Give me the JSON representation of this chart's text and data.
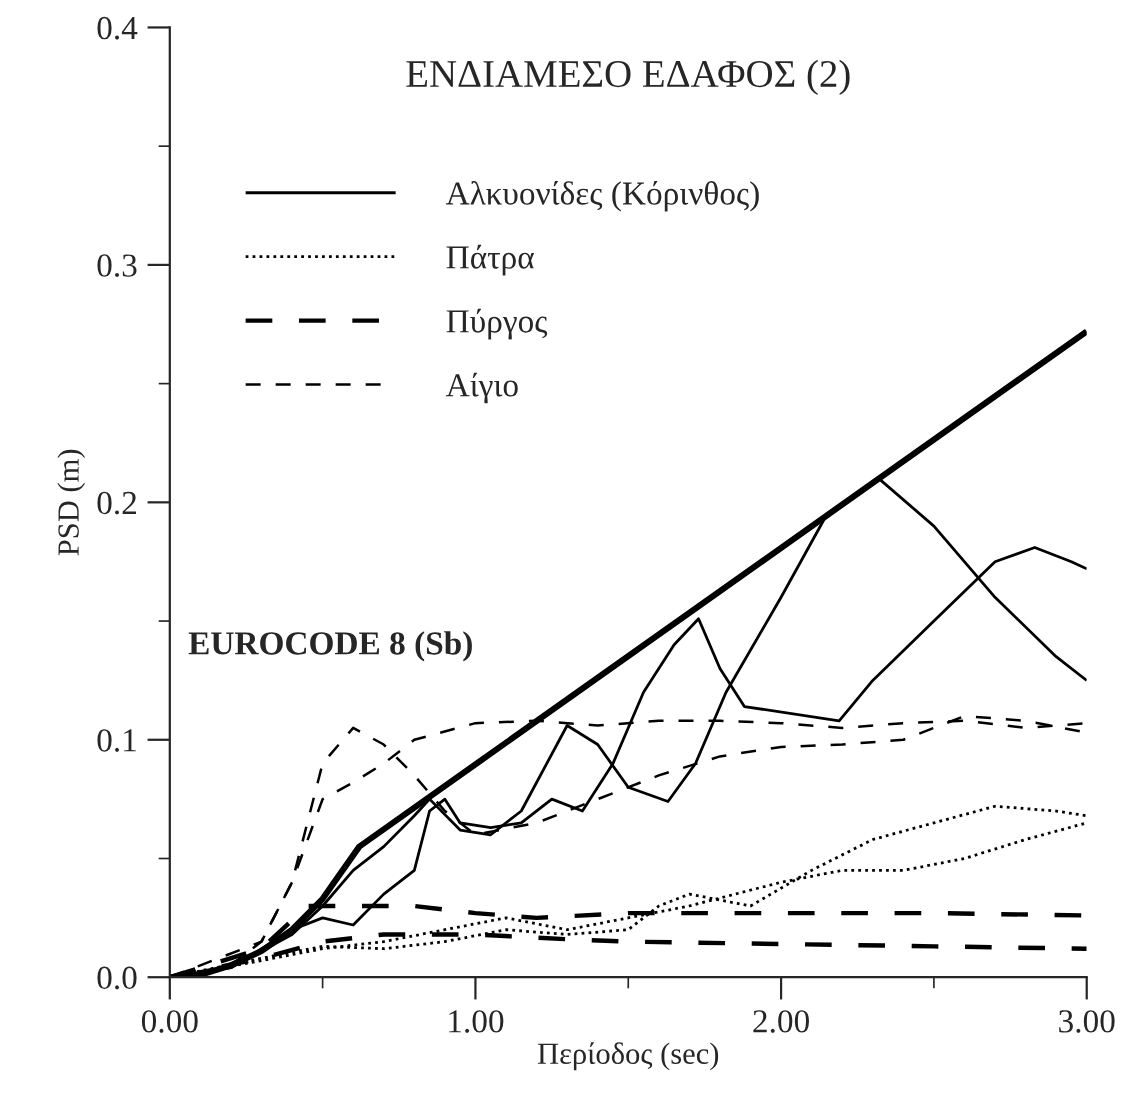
{
  "chart_data": {
    "type": "line",
    "title": "ΕΝΔΙΑΜΕΣΟ ΕΔΑΦΟΣ (2)",
    "xlabel": "Περίοδος (sec)",
    "ylabel": "PSD (m)",
    "xlim": [
      0,
      3
    ],
    "ylim": [
      0,
      0.4
    ],
    "xticks": [
      {
        "value": 0,
        "label": "0.00"
      },
      {
        "value": 1,
        "label": "1.00"
      },
      {
        "value": 2,
        "label": "2.00"
      },
      {
        "value": 3,
        "label": "3.00"
      }
    ],
    "yticks": [
      {
        "value": 0,
        "label": "0.0"
      },
      {
        "value": 0.1,
        "label": "0.1"
      },
      {
        "value": 0.2,
        "label": "0.2"
      },
      {
        "value": 0.3,
        "label": "0.3"
      },
      {
        "value": 0.4,
        "label": "0.4"
      }
    ],
    "grid": false,
    "legend": "top left",
    "marker": "none",
    "annotations": [
      "EUROCODE 8 (Sb)"
    ],
    "series": [
      {
        "name": "Αλκυονίδες (Κόρινθος)",
        "color": "#000000",
        "line_style": "solid",
        "x": [
          0,
          0.2,
          0.4,
          0.5,
          0.6,
          0.7,
          0.8,
          0.85,
          0.95,
          1.05,
          1.15,
          1.3,
          1.4,
          1.5,
          1.63,
          1.72,
          1.82,
          2.0,
          2.15,
          2.32,
          2.5,
          2.7,
          2.9,
          3.0
        ],
        "values": [
          0,
          0.004,
          0.018,
          0.03,
          0.045,
          0.055,
          0.068,
          0.075,
          0.062,
          0.06,
          0.07,
          0.106,
          0.098,
          0.08,
          0.074,
          0.09,
          0.12,
          0.16,
          0.195,
          0.21,
          0.19,
          0.16,
          0.135,
          0.125
        ]
      },
      {
        "color": "#000000",
        "line_style": "solid",
        "x": [
          0,
          0.2,
          0.4,
          0.5,
          0.6,
          0.7,
          0.8,
          0.85,
          0.9,
          0.95,
          1.05,
          1.15,
          1.25,
          1.35,
          1.45,
          1.55,
          1.65,
          1.73,
          1.8,
          1.88,
          2.19,
          2.3,
          2.5,
          2.7,
          2.83,
          2.95,
          3.0
        ],
        "values": [
          0,
          0.004,
          0.02,
          0.025,
          0.022,
          0.035,
          0.045,
          0.07,
          0.075,
          0.065,
          0.063,
          0.065,
          0.075,
          0.07,
          0.09,
          0.12,
          0.14,
          0.151,
          0.13,
          0.114,
          0.108,
          0.125,
          0.15,
          0.175,
          0.181,
          0.175,
          0.172
        ]
      },
      {
        "name": "Πάτρα",
        "color": "#000000",
        "line_style": "dotted",
        "x": [
          0,
          0.3,
          0.5,
          0.7,
          0.9,
          1.1,
          1.3,
          1.5,
          1.6,
          1.7,
          1.9,
          2.1,
          2.3,
          2.5,
          2.7,
          2.9,
          3.0
        ],
        "values": [
          0,
          0.008,
          0.013,
          0.012,
          0.015,
          0.02,
          0.018,
          0.02,
          0.03,
          0.035,
          0.03,
          0.045,
          0.058,
          0.065,
          0.072,
          0.07,
          0.068
        ]
      },
      {
        "color": "#000000",
        "line_style": "dotted",
        "x": [
          0,
          0.3,
          0.5,
          0.7,
          0.9,
          1.1,
          1.3,
          1.5,
          1.7,
          2.0,
          2.2,
          2.4,
          2.6,
          2.8,
          3.0
        ],
        "values": [
          0,
          0.007,
          0.012,
          0.015,
          0.02,
          0.025,
          0.02,
          0.025,
          0.03,
          0.04,
          0.045,
          0.045,
          0.05,
          0.058,
          0.065
        ]
      },
      {
        "name": "Πύργος",
        "color": "#000000",
        "line_style": "dashed",
        "x": [
          0,
          0.3,
          0.45,
          0.6,
          0.8,
          1.0,
          1.2,
          1.5,
          2.0,
          2.5,
          3.0
        ],
        "values": [
          0,
          0.012,
          0.03,
          0.03,
          0.03,
          0.027,
          0.025,
          0.027,
          0.027,
          0.027,
          0.026
        ]
      },
      {
        "color": "#000000",
        "line_style": "dashed",
        "x": [
          0,
          0.3,
          0.5,
          0.7,
          1.0,
          1.3,
          1.5,
          2.0,
          2.5,
          3.0
        ],
        "values": [
          0,
          0.008,
          0.015,
          0.018,
          0.018,
          0.016,
          0.015,
          0.014,
          0.013,
          0.012
        ]
      },
      {
        "name": "Αίγιο",
        "color": "#000000",
        "line_style": "dashed",
        "x": [
          0,
          0.2,
          0.3,
          0.4,
          0.5,
          0.6,
          0.7,
          0.8,
          0.9,
          1.0,
          1.2,
          1.4,
          1.6,
          1.8,
          2.0,
          2.2,
          2.4,
          2.6,
          2.8,
          3.0
        ],
        "values": [
          0,
          0.005,
          0.015,
          0.04,
          0.09,
          0.105,
          0.098,
          0.085,
          0.07,
          0.06,
          0.065,
          0.075,
          0.085,
          0.093,
          0.097,
          0.098,
          0.1,
          0.11,
          0.108,
          0.103
        ]
      },
      {
        "color": "#000000",
        "line_style": "dashed",
        "x": [
          0,
          0.3,
          0.4,
          0.5,
          0.6,
          0.7,
          0.8,
          1.0,
          1.2,
          1.4,
          1.6,
          1.8,
          2.0,
          2.2,
          2.4,
          2.6,
          2.8,
          3.0
        ],
        "values": [
          0,
          0.015,
          0.04,
          0.075,
          0.082,
          0.09,
          0.1,
          0.107,
          0.108,
          0.106,
          0.108,
          0.108,
          0.107,
          0.105,
          0.107,
          0.108,
          0.105,
          0.107
        ]
      },
      {
        "color": "#000000",
        "line_style": "solid",
        "x": [
          0,
          0.1,
          0.2,
          0.3,
          0.4,
          0.5,
          0.62,
          3.0
        ],
        "values": [
          0,
          0.001,
          0.005,
          0.011,
          0.02,
          0.033,
          0.055,
          0.272
        ]
      }
    ]
  }
}
